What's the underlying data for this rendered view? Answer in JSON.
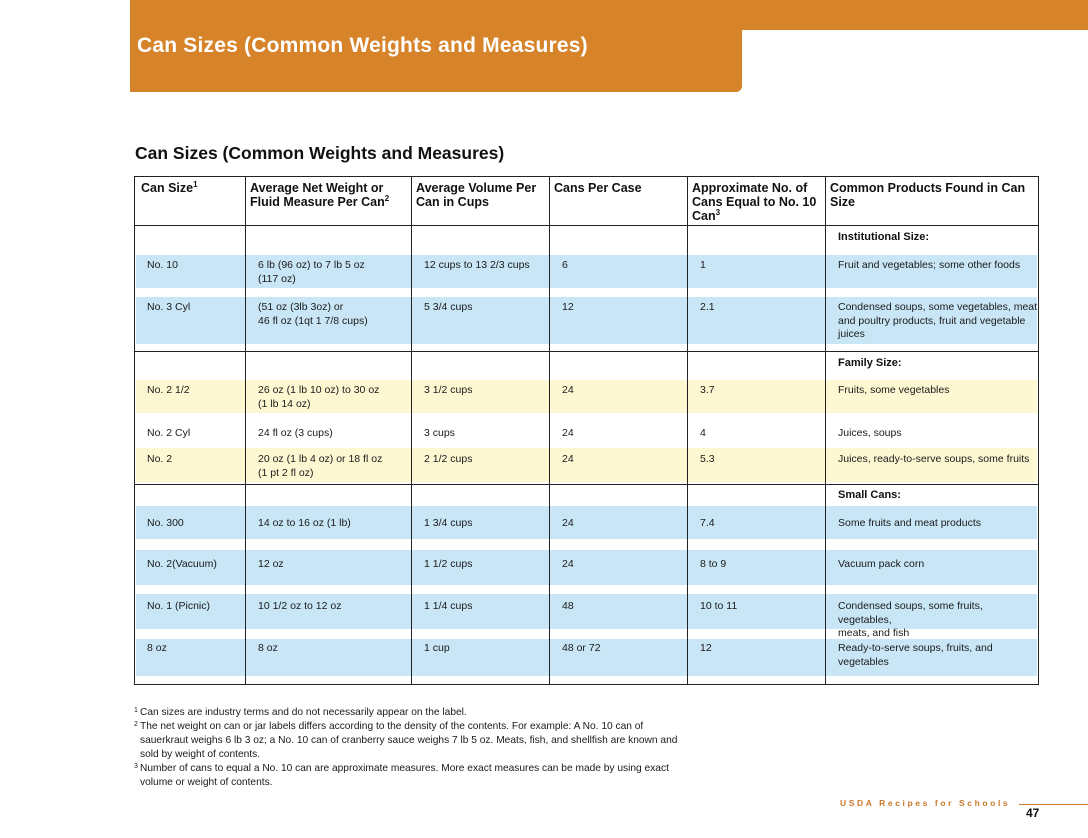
{
  "banner": {
    "title": "Can Sizes (Common Weights and Measures)"
  },
  "section": {
    "title": "Can Sizes (Common Weights and Measures)"
  },
  "table": {
    "headers": [
      {
        "text": "Can Size",
        "sup": "1"
      },
      {
        "text": "Average Net Weight or Fluid Measure Per Can",
        "sup": "2"
      },
      {
        "text": "Average Volume Per Can in Cups",
        "sup": ""
      },
      {
        "text": "Cans Per Case",
        "sup": ""
      },
      {
        "text": "Approximate No. of Cans Equal to No. 10 Can",
        "sup": "3"
      },
      {
        "text": "Common Products Found in Can Size",
        "sup": ""
      }
    ],
    "sections": [
      {
        "label": "Institutional Size:"
      },
      {
        "label": "Family Size:"
      },
      {
        "label": "Small Cans:"
      }
    ],
    "rows": [
      [
        "No. 10",
        "6 lb (96 oz) to 7 lb 5 oz\n(117 oz)",
        "12 cups to 13 2/3 cups",
        "6",
        "1",
        "Fruit and vegetables; some other foods"
      ],
      [
        "No. 3 Cyl",
        "(51 oz (3lb 3oz) or\n46 fl oz (1qt 1 7/8 cups)",
        "5 3/4 cups",
        "12",
        "2.1",
        "Condensed soups, some vegetables, meat\nand poultry products, fruit and vegetable\njuices"
      ],
      [
        "No. 2 1/2",
        "26 oz (1 lb 10 oz) to 30 oz\n (1 lb 14 oz)",
        "3 1/2 cups",
        "24",
        "3.7",
        "Fruits, some vegetables"
      ],
      [
        "No. 2 Cyl",
        "24 fl oz (3 cups)",
        "3 cups",
        "24",
        "4",
        "Juices, soups"
      ],
      [
        "No. 2",
        "20 oz (1 lb 4 oz) or 18 fl oz\n(1 pt 2 fl oz)",
        "2 1/2 cups",
        "24",
        "5.3",
        "Juices, ready-to-serve soups, some fruits"
      ],
      [
        "No. 300",
        "14 oz to 16 oz (1 lb)",
        "1 3/4 cups",
        "24",
        "7.4",
        "Some fruits and meat products"
      ],
      [
        "No. 2(Vacuum)",
        "12 oz",
        "1 1/2 cups",
        "24",
        "8 to 9",
        "Vacuum pack corn"
      ],
      [
        "No. 1 (Picnic)",
        "10 1/2 oz to 12 oz",
        "1 1/4 cups",
        "48",
        "10 to 11",
        "Condensed soups, some fruits, vegetables,\nmeats, and fish"
      ],
      [
        "8 oz",
        "8 oz",
        "1 cup",
        "48 or 72",
        "12",
        "Ready-to-serve soups, fruits, and\nvegetables"
      ]
    ]
  },
  "footnotes": [
    {
      "sup": "1",
      "text": "Can sizes are industry terms and do not necessarily appear on the label."
    },
    {
      "sup": "2",
      "text": "The net weight on can or jar labels differs according to the density of the contents. For example: A No. 10 can of sauerkraut weighs 6 lb 3 oz; a No. 10 can of cranberry sauce weighs 7 lb 5 oz. Meats, fish, and shellfish are known and sold by weight of contents."
    },
    {
      "sup": "3",
      "text": "Number of cans to equal a No. 10 can are approximate measures. More exact measures can be made by using exact volume or weight of contents."
    }
  ],
  "footer": {
    "brand": "USDA Recipes for Schools",
    "page_number": "47"
  },
  "colors": {
    "banner": "#d6832a",
    "band_blue": "#c8e6f6",
    "band_yellow": "#fdf7d2",
    "brand_text": "#c9792a"
  }
}
